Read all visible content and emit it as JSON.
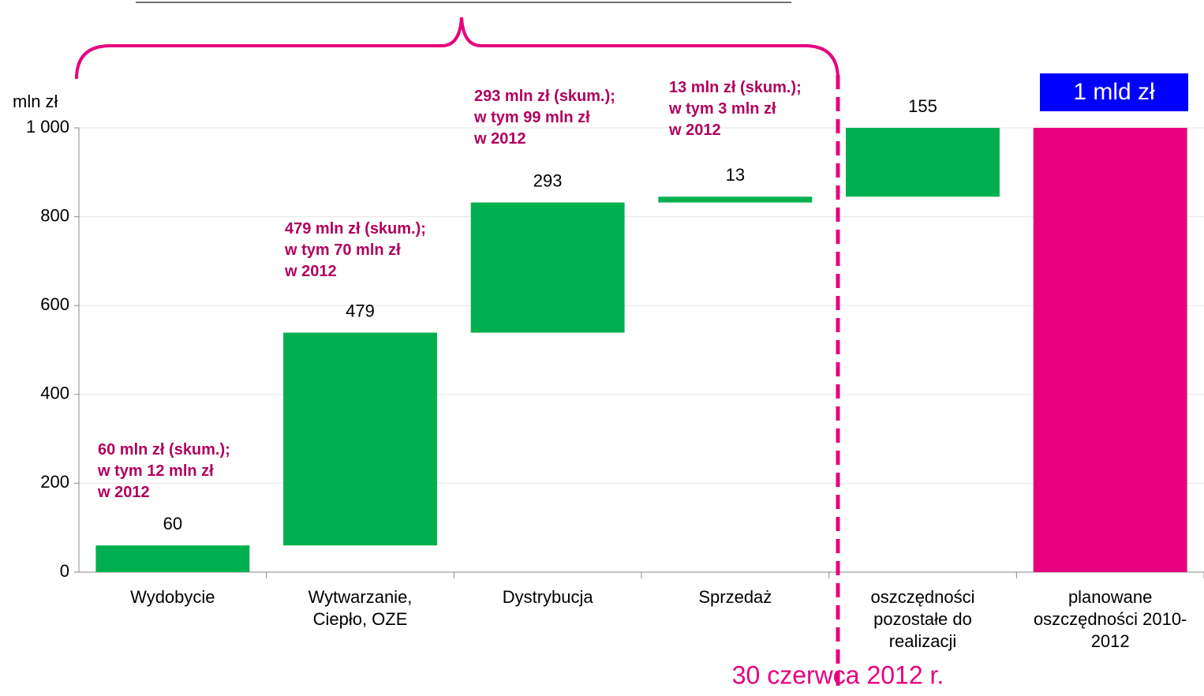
{
  "chart_data": {
    "type": "waterfall",
    "y_label": "mln zł",
    "categories": [
      [
        "Wydobycie"
      ],
      [
        "Wytwarzanie,",
        "Ciepło, OZE"
      ],
      [
        "Dystrybucja"
      ],
      [
        "Sprzedaż"
      ],
      [
        "oszczędności",
        "pozostałe do",
        "realizacji"
      ],
      [
        "planowane",
        "oszczędności 2010-",
        "2012"
      ]
    ],
    "values": [
      60,
      479,
      293,
      13,
      155,
      1000
    ],
    "is_total": [
      false,
      false,
      false,
      false,
      false,
      true
    ],
    "color": "#00b050",
    "total_color": "#e6007e",
    "ylim": [
      0,
      1000
    ],
    "yticks": [
      0,
      200,
      400,
      600,
      800,
      {
        "value": 1000,
        "label": "1 000"
      }
    ],
    "grid": true,
    "annotations": [
      [
        "60 mln zł (skum.);",
        "w tym 12 mln zł",
        "w 2012"
      ],
      [
        "479 mln zł (skum.);",
        "w tym 70 mln zł",
        "w 2012"
      ],
      [
        "293 mln zł (skum.);",
        "w tym 99 mln zł",
        "w 2012"
      ],
      [
        "13 mln zł (skum.);",
        "w tym 3 mln zł",
        "w 2012"
      ]
    ],
    "total_badge": "1 mld zł",
    "date_marker": "30 czerwca 2012 r."
  }
}
